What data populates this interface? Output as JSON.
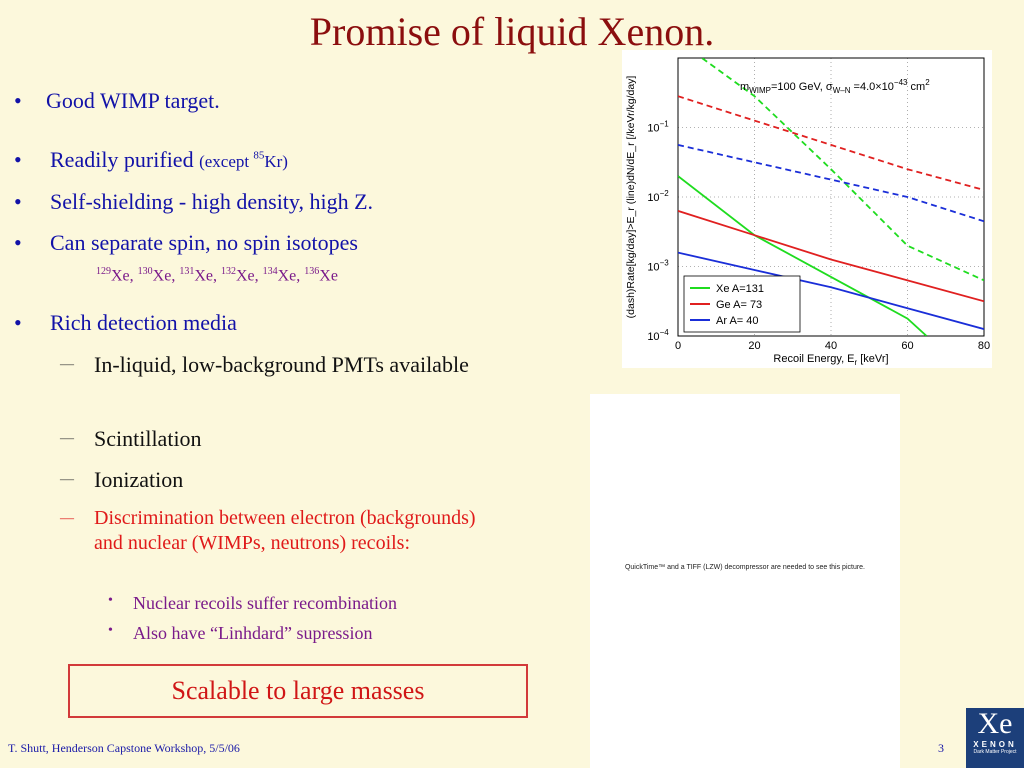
{
  "title": "Promise of liquid Xenon.",
  "bullets": {
    "b1": "Good WIMP target.",
    "b2_main": "Readily purified ",
    "b2_paren_a": "(except ",
    "b2_sup": "85",
    "b2_paren_b": "Kr)",
    "b3": "Self-shielding - high density, high Z.",
    "b4": "Can separate spin, no spin isotopes",
    "b5": "Rich detection media"
  },
  "isotopes": [
    {
      "mass": "129",
      "sym": "Xe, "
    },
    {
      "mass": "130",
      "sym": "Xe, "
    },
    {
      "mass": "131",
      "sym": "Xe, "
    },
    {
      "mass": "132",
      "sym": "Xe, "
    },
    {
      "mass": "134",
      "sym": "Xe, "
    },
    {
      "mass": "136",
      "sym": "Xe"
    }
  ],
  "subitems": {
    "s1": "In-liquid, low-background PMTs available",
    "s2": "Scintillation",
    "s3": "Ionization",
    "s4": "Discrimination between electron (backgrounds) and nuclear (WIMPs, neutrons) recoils:",
    "ss1": "Nuclear recoils suffer recombination",
    "ss2": "Also have “Linhdard” supression"
  },
  "scalable": "Scalable to large masses",
  "footer": "T. Shutt, Henderson Capstone Workshop, 5/5/06",
  "page_number": "3",
  "quicktime_text": "QuickTime™ and a TIFF (LZW) decompressor are needed to see this picture.",
  "logo": {
    "big": "Xe",
    "mid": "XENON",
    "tiny": "Dark Matter Project"
  },
  "chart_data": {
    "type": "line",
    "annotation": "m_WIMP=100 GeV, σ_W-N =4.0×10^-43 cm^2",
    "annotation_parts": {
      "m": "m",
      "m_sub": "WIMP",
      "m_rest": "=100 GeV, σ",
      "s_sub": "W–N",
      "s_rest": " =4.0×10",
      "exp": "−43",
      "unit": " cm",
      "unit_exp": "2"
    },
    "xlabel": "Recoil Energy, E",
    "xlabel_sub": "r",
    "xlabel_unit": " [keVr]",
    "ylabel": "(dash)Rate[kg/day]>E_r  (line)dN/dE_r [/keVr/kg/day]",
    "xlim": [
      0,
      80
    ],
    "ylim_log10": [
      -4,
      0
    ],
    "x_ticks": [
      "0",
      "20",
      "40",
      "60",
      "80"
    ],
    "y_ticks": [
      {
        "value": -1,
        "base": "10",
        "exp": "−1"
      },
      {
        "value": -2,
        "base": "10",
        "exp": "−2"
      },
      {
        "value": -3,
        "base": "10",
        "exp": "−3"
      },
      {
        "value": -4,
        "base": "10",
        "exp": "−4"
      }
    ],
    "grid": true,
    "legend_position": "bottom-left",
    "series": [
      {
        "name": "Xe A=131",
        "color": "#1fdc1f",
        "dash_log10": [
          [
            0,
            0.25
          ],
          [
            20,
            -0.55
          ],
          [
            40,
            -1.6
          ],
          [
            60,
            -2.7
          ],
          [
            80,
            -3.2
          ]
        ],
        "line_log10": [
          [
            0,
            -1.7
          ],
          [
            20,
            -2.55
          ],
          [
            40,
            -3.15
          ],
          [
            60,
            -3.75
          ],
          [
            65,
            -4.0
          ]
        ]
      },
      {
        "name": "Ge A= 73",
        "color": "#e02020",
        "dash_log10": [
          [
            0,
            -0.55
          ],
          [
            20,
            -0.9
          ],
          [
            40,
            -1.25
          ],
          [
            60,
            -1.6
          ],
          [
            80,
            -1.9
          ]
        ],
        "line_log10": [
          [
            0,
            -2.2
          ],
          [
            20,
            -2.55
          ],
          [
            40,
            -2.9
          ],
          [
            60,
            -3.2
          ],
          [
            80,
            -3.5
          ]
        ]
      },
      {
        "name": "Ar A= 40",
        "color": "#1a2ed8",
        "dash_log10": [
          [
            0,
            -1.25
          ],
          [
            20,
            -1.5
          ],
          [
            40,
            -1.75
          ],
          [
            60,
            -2.0
          ],
          [
            80,
            -2.35
          ]
        ],
        "line_log10": [
          [
            0,
            -2.8
          ],
          [
            20,
            -3.05
          ],
          [
            40,
            -3.3
          ],
          [
            60,
            -3.6
          ],
          [
            80,
            -3.9
          ]
        ]
      }
    ]
  }
}
